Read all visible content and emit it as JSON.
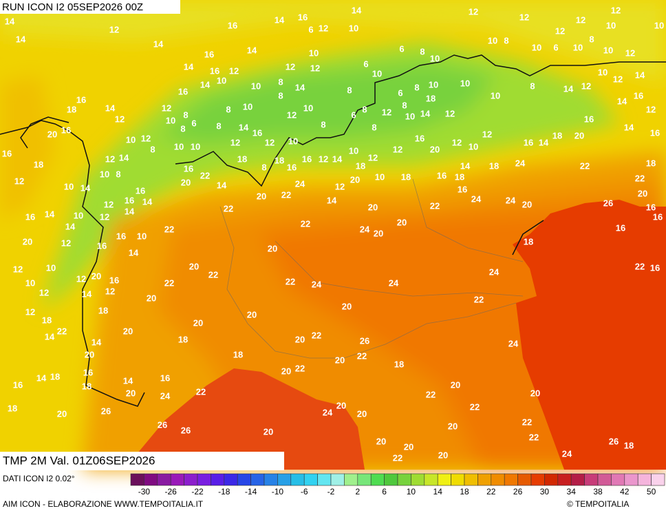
{
  "header": {
    "run": "RUN ICON I2 05SEP2026 00Z"
  },
  "map": {
    "labels": [
      14,
      14,
      14,
      14,
      14,
      16,
      6,
      12,
      14,
      10,
      12,
      12,
      12,
      10,
      10,
      16,
      12,
      14,
      16,
      14,
      16,
      12,
      10,
      12,
      12,
      10,
      6,
      8,
      10,
      10,
      8,
      10,
      6,
      10,
      8,
      10,
      12,
      12,
      12,
      14,
      16,
      8,
      8,
      14,
      10,
      8,
      10,
      12,
      10,
      8,
      6,
      8,
      8,
      14,
      16,
      12,
      10,
      8,
      8,
      6,
      10,
      8,
      6,
      8,
      12,
      8,
      10,
      14,
      18,
      12,
      10,
      10,
      6,
      8,
      10,
      8,
      14,
      12,
      10,
      12,
      14,
      16,
      14,
      18,
      16,
      14,
      12,
      20,
      16,
      10,
      12,
      8,
      10,
      10,
      12,
      18,
      12,
      10,
      16,
      12,
      14,
      10,
      12,
      18,
      10,
      18,
      16,
      18,
      16,
      14,
      18,
      20,
      16,
      12,
      12,
      10,
      12,
      16,
      14,
      18,
      20,
      22,
      16,
      14,
      12,
      16,
      18,
      22,
      20,
      16,
      16,
      16,
      18,
      12,
      14,
      10,
      10,
      8,
      16,
      12,
      14,
      16,
      20,
      22,
      14,
      8,
      18,
      16,
      24,
      22,
      20,
      14,
      12,
      20,
      20,
      22,
      24,
      24,
      20,
      24,
      26,
      16,
      16,
      14,
      10,
      12,
      16,
      14,
      12,
      14,
      16,
      10,
      12,
      14,
      20,
      22,
      22,
      22,
      24,
      20,
      20,
      18,
      14,
      16,
      12,
      10,
      12,
      20,
      16,
      12,
      10,
      12,
      14,
      12,
      18,
      18,
      14,
      22,
      20,
      20,
      22,
      22,
      22,
      24,
      24,
      24,
      22,
      20,
      20,
      20,
      20,
      20,
      18,
      20,
      22,
      26,
      24,
      22,
      16,
      14,
      20,
      18,
      20,
      22,
      20,
      22,
      18,
      16,
      14,
      18,
      16,
      18,
      16,
      14,
      20,
      24,
      22,
      20,
      22,
      20,
      18,
      20,
      26,
      24,
      20,
      20,
      22,
      26,
      26,
      20,
      20,
      22,
      22,
      20,
      20,
      20,
      22,
      24,
      26,
      18
    ]
  },
  "footer": {
    "valid": "TMP 2M Val. 01Z06SEP2026",
    "source": "DATI ICON I2 0.02°",
    "credit": "AIM ICON - ELABORAZIONE WWW.TEMPOITALIA.IT",
    "copyright": "© TEMPOITALIA"
  },
  "colorbar": {
    "ticks": [
      -30,
      -26,
      -22,
      -18,
      -14,
      -10,
      -6,
      -2,
      2,
      6,
      10,
      14,
      18,
      22,
      26,
      30,
      34,
      38,
      42,
      50
    ],
    "colors": [
      "#6b0f5a",
      "#800a80",
      "#8a1aa0",
      "#9a1ab8",
      "#8c1ecc",
      "#7a1ee0",
      "#5a1ee6",
      "#3c28e6",
      "#2846e6",
      "#2864e6",
      "#2882e6",
      "#28a0e6",
      "#28bee6",
      "#32d2f0",
      "#64e6f0",
      "#a0f0e6",
      "#a0f08c",
      "#78e678",
      "#50dc50",
      "#50c83c",
      "#78d23c",
      "#a0dc32",
      "#c8e628",
      "#f0f014",
      "#f0dc00",
      "#f0be00",
      "#f0a000",
      "#f08c00",
      "#f07800",
      "#e65a00",
      "#e63c00",
      "#d22800",
      "#c81e1e",
      "#b41e46",
      "#c83c78",
      "#d25a96",
      "#e178b4",
      "#eb96cc",
      "#f5b4dc",
      "#fad2eb"
    ]
  }
}
